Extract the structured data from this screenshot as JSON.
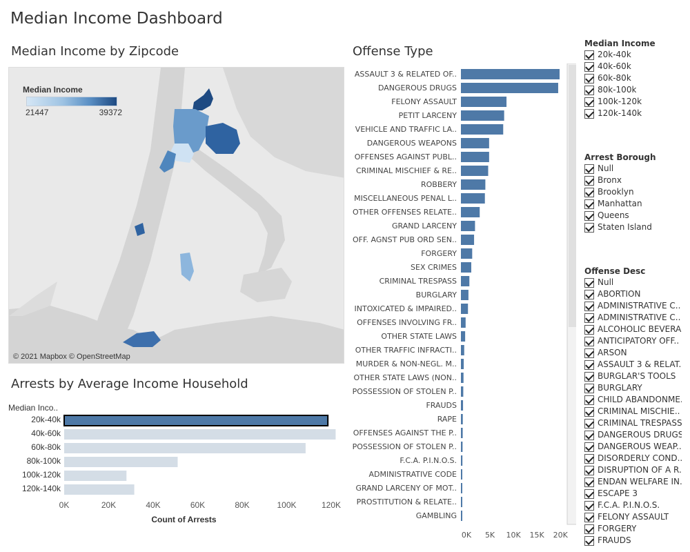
{
  "dashboard": {
    "title": "Median Income Dashboard"
  },
  "map": {
    "title": "Median Income by Zipcode",
    "legend_title": "Median Income",
    "legend_min": "21447",
    "legend_max": "39372",
    "attribution": "© 2021 Mapbox © OpenStreetMap",
    "colors": {
      "land": "#e9e9e9",
      "water": "#d4d4d4",
      "low": "#d5e6f5",
      "high": "#1e4a82"
    }
  },
  "arrests": {
    "title": "Arrests by Average Income Household",
    "axis_title": "Count of Arrests",
    "row_header": "Median Inco..",
    "colors": {
      "selected": "#4e79a7",
      "other": "#d4dde6"
    }
  },
  "offense": {
    "title": "Offense Type",
    "bar_color": "#4e79a7"
  },
  "filters": {
    "median_income": {
      "title": "Median Income",
      "items": [
        "20k-40k",
        "40k-60k",
        "60k-80k",
        "80k-100k",
        "100k-120k",
        "120k-140k"
      ]
    },
    "arrest_borough": {
      "title": "Arrest Borough",
      "items": [
        "Null",
        "Bronx",
        "Brooklyn",
        "Manhattan",
        "Queens",
        "Staten Island"
      ]
    },
    "offense_desc": {
      "title": "Offense Desc",
      "items": [
        "Null",
        "ABORTION",
        "ADMINISTRATIVE C..",
        "ADMINISTRATIVE C..",
        "ALCOHOLIC BEVERA..",
        "ANTICIPATORY OFF..",
        "ARSON",
        "ASSAULT 3 & RELAT..",
        "BURGLAR'S TOOLS",
        "BURGLARY",
        "CHILD ABANDONME..",
        "CRIMINAL MISCHIE..",
        "CRIMINAL TRESPASS",
        "DANGEROUS DRUGS",
        "DANGEROUS WEAP..",
        "DISORDERLY COND..",
        "DISRUPTION OF A R..",
        "ENDAN WELFARE IN..",
        "ESCAPE 3",
        "F.C.A. P.I.N.O.S.",
        "FELONY ASSAULT",
        "FORGERY",
        "FRAUDS"
      ]
    }
  },
  "chart_data": [
    {
      "type": "bar",
      "orientation": "horizontal",
      "title": "Arrests by Average Income Household",
      "xlabel": "Count of Arrests",
      "ylabel": "Median Inco..",
      "categories": [
        "20k-40k",
        "40k-60k",
        "60k-80k",
        "80k-100k",
        "100k-120k",
        "120k-140k"
      ],
      "values": [
        118500,
        122000,
        108500,
        51000,
        28000,
        31500
      ],
      "selected": "20k-40k",
      "xlim": [
        0,
        130000
      ],
      "ticks": [
        0,
        20000,
        40000,
        60000,
        80000,
        100000,
        120000
      ],
      "tick_labels": [
        "0K",
        "20K",
        "40K",
        "60K",
        "80K",
        "100K",
        "120K"
      ],
      "grid": false
    },
    {
      "type": "bar",
      "orientation": "horizontal",
      "title": "Offense Type",
      "categories": [
        "ASSAULT 3 & RELATED OF..",
        "DANGEROUS DRUGS",
        "FELONY ASSAULT",
        "PETIT LARCENY",
        "VEHICLE AND TRAFFIC LA..",
        "DANGEROUS WEAPONS",
        "OFFENSES AGAINST PUBL..",
        "CRIMINAL MISCHIEF & RE..",
        "ROBBERY",
        "MISCELLANEOUS PENAL L..",
        "OTHER OFFENSES RELATE..",
        "GRAND LARCENY",
        "OFF. AGNST PUB ORD SEN..",
        "FORGERY",
        "SEX CRIMES",
        "CRIMINAL TRESPASS",
        "BURGLARY",
        "INTOXICATED & IMPAIRED..",
        "OFFENSES INVOLVING FR..",
        "OTHER STATE LAWS",
        "OTHER TRAFFIC INFRACTI..",
        "MURDER & NON-NEGL. M..",
        "OTHER STATE LAWS (NON..",
        "POSSESSION OF STOLEN P..",
        "FRAUDS",
        "RAPE",
        "OFFENSES AGAINST THE P..",
        "POSSESSION OF STOLEN P..",
        "F.C.A. P.I.N.O.S.",
        "ADMINISTRATIVE CODE",
        "GRAND LARCENY OF MOT..",
        "PROSTITUTION & RELATE..",
        "GAMBLING"
      ],
      "values": [
        21000,
        20700,
        9700,
        9200,
        9000,
        6000,
        6000,
        5800,
        5200,
        5100,
        4000,
        3000,
        2800,
        2400,
        2200,
        1800,
        1600,
        1500,
        1000,
        900,
        700,
        600,
        550,
        500,
        450,
        400,
        380,
        350,
        320,
        280,
        250,
        230,
        200
      ],
      "xlim": [
        0,
        22500
      ],
      "ticks": [
        0,
        5000,
        10000,
        15000,
        20000
      ],
      "tick_labels": [
        "0K",
        "5K",
        "10K",
        "15K",
        "20K"
      ],
      "grid": false
    }
  ]
}
